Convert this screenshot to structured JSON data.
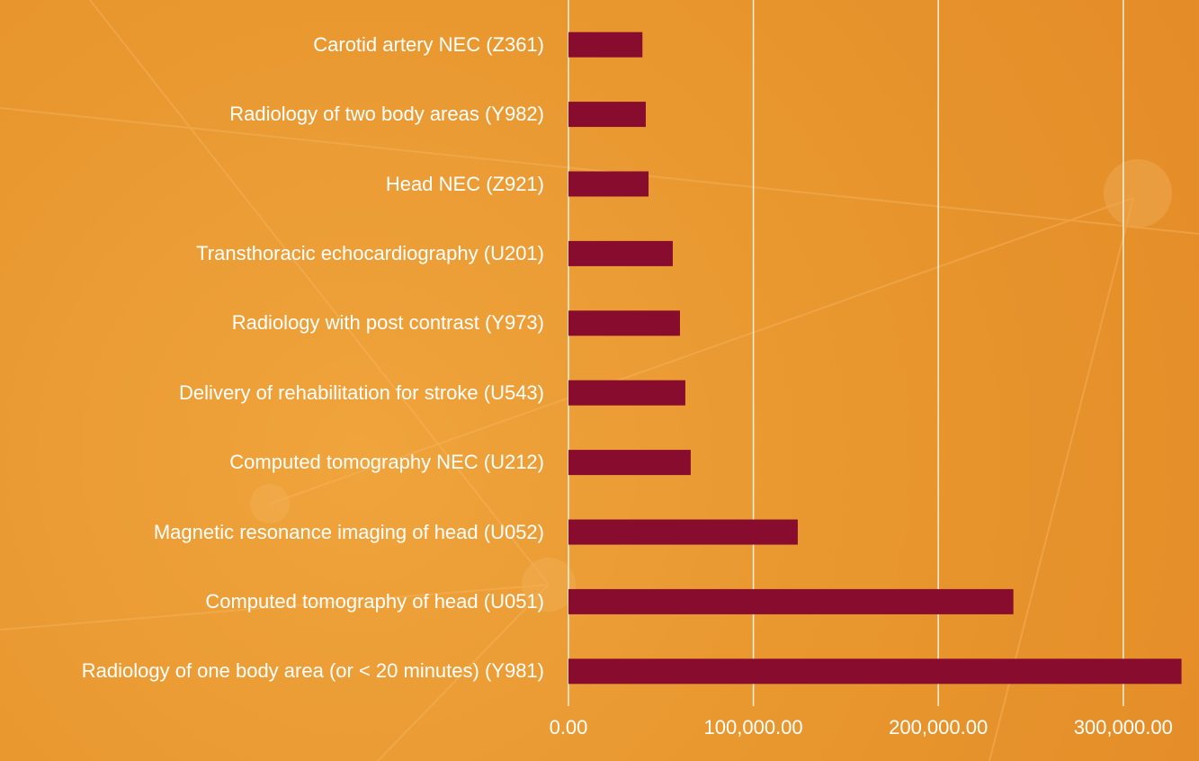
{
  "chart_data": {
    "type": "barh",
    "categories": [
      "Carotid artery NEC (Z361)",
      "Radiology of two body areas (Y982)",
      "Head NEC (Z921)",
      "Transthoracic echocardiography (U201)",
      "Radiology with post contrast (Y973)",
      "Delivery of rehabilitation for stroke (U543)",
      "Computed tomography NEC (U212)",
      "Magnetic resonance imaging of head (U052)",
      "Computed tomography of head (U051)",
      "Radiology of one body area (or < 20 minutes) (Y981)"
    ],
    "values": [
      40000,
      41800,
      43300,
      56400,
      60300,
      63200,
      66100,
      124000,
      240600,
      331500
    ],
    "color": "#870c2e",
    "xlim": [
      0,
      340000
    ],
    "xticks": [
      {
        "value": 0,
        "label": "0.00"
      },
      {
        "value": 100000,
        "label": "100,000.00"
      },
      {
        "value": 200000,
        "label": "200,000.00"
      },
      {
        "value": 300000,
        "label": "300,000.00"
      }
    ],
    "grid": true
  }
}
